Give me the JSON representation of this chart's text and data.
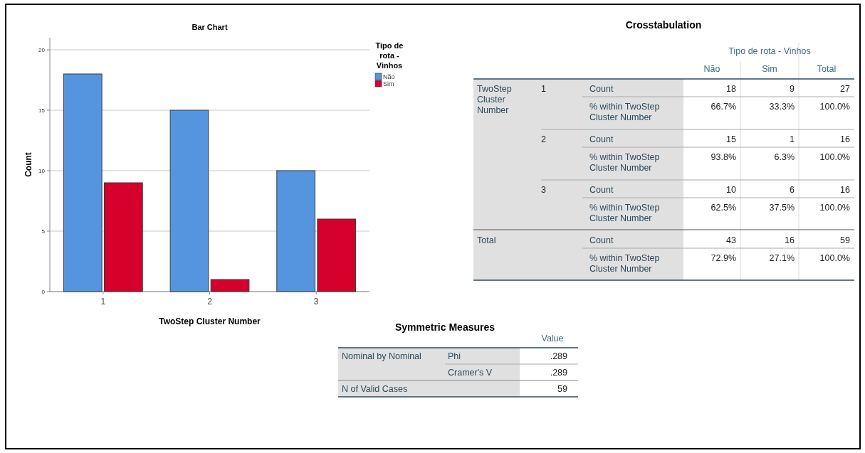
{
  "chart_data": [
    {
      "type": "bar",
      "title": "Bar Chart",
      "xlabel": "TwoStep Cluster Number",
      "ylabel": "Count",
      "legend_title": "Tipo de rota - Vinhos",
      "categories": [
        "1",
        "2",
        "3"
      ],
      "series": [
        {
          "name": "Não",
          "color": "#5595e0",
          "values": [
            18,
            15,
            10
          ]
        },
        {
          "name": "Sim",
          "color": "#d5002c",
          "values": [
            9,
            1,
            6
          ]
        }
      ],
      "ylim": [
        0,
        21
      ],
      "yticks": [
        0,
        5,
        10,
        15,
        20
      ],
      "grid": "y",
      "legend": "top right"
    },
    {
      "type": "other",
      "title": "Crosstabulation",
      "annotations": [
        "Tipo de rota - Vinhos",
        "Não",
        "Sim",
        "Total",
        "TwoStep Cluster Number",
        "1",
        "Count",
        "18",
        "9",
        "27",
        "% within TwoStep Cluster Number",
        "66.7%",
        "33.3%",
        "100.0%",
        "2",
        "Count",
        "15",
        "1",
        "16",
        "% within TwoStep Cluster Number",
        "93.8%",
        "6.3%",
        "100.0%",
        "3",
        "Count",
        "10",
        "6",
        "16",
        "% within TwoStep Cluster Number",
        "62.5%",
        "37.5%",
        "100.0%",
        "Total",
        "Count",
        "43",
        "16",
        "59",
        "% within TwoStep Cluster Number",
        "72.9%",
        "27.1%",
        "100.0%"
      ]
    },
    {
      "type": "other",
      "title": "Symmetric Measures",
      "annotations": [
        "Value",
        "Nominal by Nominal",
        "Phi",
        ".289",
        "Cramer's V",
        ".289",
        "N of Valid Cases",
        "59"
      ]
    }
  ]
}
